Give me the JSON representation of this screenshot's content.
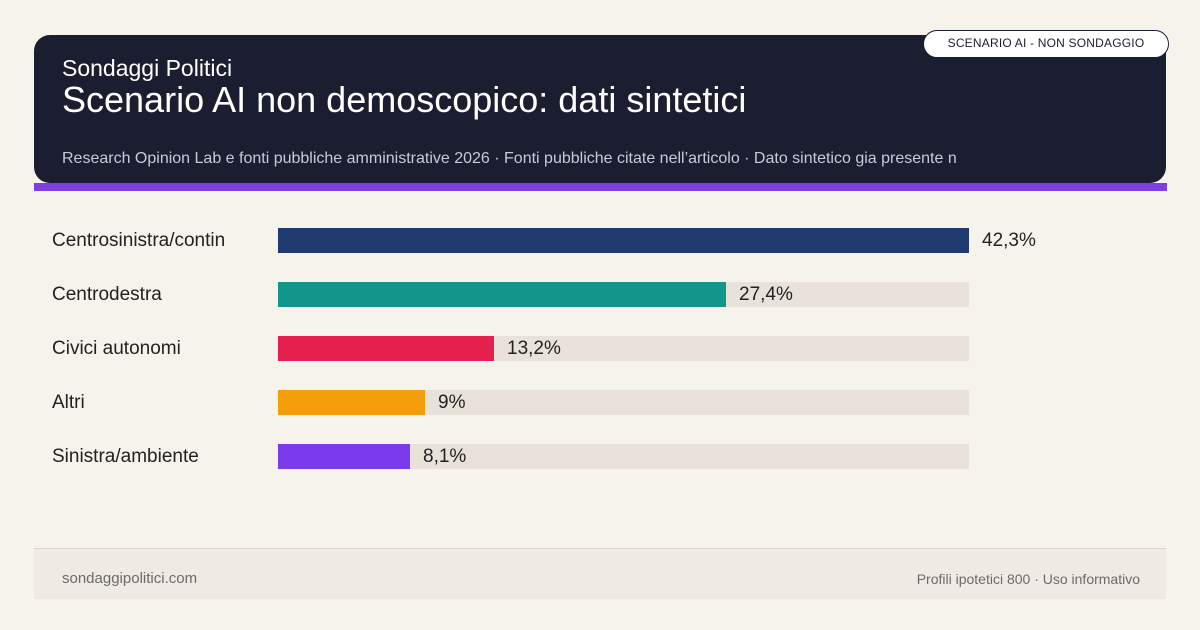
{
  "header": {
    "brand": "Sondaggi Politici",
    "title": "Scenario AI non demoscopico: dati sintetici",
    "sources": "Research Opinion Lab e fonti pubbliche amministrative 2026 · Fonti pubbliche citate nell’articolo · Dato sintetico gia presente n",
    "badge": "SCENARIO AI - NON SONDAGGIO"
  },
  "colors": {
    "header_bg": "#1b1d31",
    "accent": "#7b3fe4",
    "track": "#e8e2db",
    "page_bg": "#f6f2ec"
  },
  "chart_data": {
    "type": "bar",
    "orientation": "horizontal",
    "categories": [
      "Centrosinistra/contin",
      "Centrodestra",
      "Civici autonomi",
      "Altri",
      "Sinistra/ambiente"
    ],
    "values": [
      42.3,
      27.4,
      13.2,
      9,
      8.1
    ],
    "value_labels": [
      "42,3%",
      "27,4%",
      "13,2%",
      "9%",
      "8,1%"
    ],
    "colors": [
      "#1e3a6e",
      "#12968a",
      "#e3204e",
      "#f59e0b",
      "#7c3aed"
    ],
    "xlim": [
      0,
      42.3
    ],
    "unit": "%",
    "grid": false
  },
  "footer": {
    "site": "sondaggipolitici.com",
    "note": "Profili ipotetici 800 · Uso informativo"
  }
}
